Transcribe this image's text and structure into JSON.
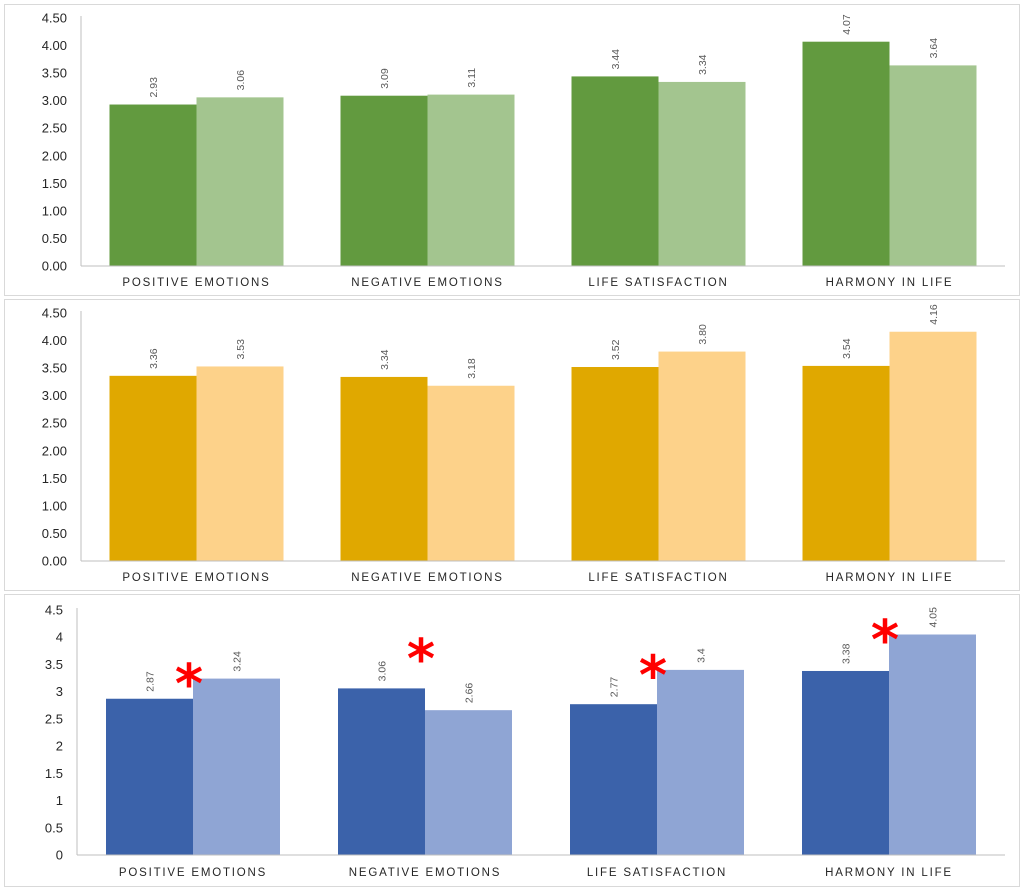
{
  "chart_data": [
    {
      "type": "bar",
      "categories": [
        "POSITIVE EMOTIONS",
        "NEGATIVE EMOTIONS",
        "LIFE SATISFACTION",
        "HARMONY IN LIFE"
      ],
      "series": [
        {
          "values": [
            2.93,
            3.09,
            3.44,
            4.07
          ],
          "labels": [
            "2.93",
            "3.09",
            "3.44",
            "4.07"
          ]
        },
        {
          "values": [
            3.06,
            3.11,
            3.34,
            3.64
          ],
          "labels": [
            "3.06",
            "3.11",
            "3.34",
            "3.64"
          ]
        }
      ],
      "colors": [
        "#629a3f",
        "#a3c58f"
      ],
      "ylim": [
        0,
        4.5
      ],
      "y_ticks": [
        "0.00",
        "0.50",
        "1.00",
        "1.50",
        "2.00",
        "2.50",
        "3.00",
        "3.50",
        "4.00",
        "4.50"
      ],
      "grid": false,
      "significance_marks": [],
      "star_symbol": "*"
    },
    {
      "type": "bar",
      "categories": [
        "POSITIVE EMOTIONS",
        "NEGATIVE EMOTIONS",
        "LIFE SATISFACTION",
        "HARMONY IN LIFE"
      ],
      "series": [
        {
          "values": [
            3.36,
            3.34,
            3.52,
            3.54
          ],
          "labels": [
            "3.36",
            "3.34",
            "3.52",
            "3.54"
          ]
        },
        {
          "values": [
            3.53,
            3.18,
            3.8,
            4.16
          ],
          "labels": [
            "3.53",
            "3.18",
            "3.80",
            "4.16"
          ]
        }
      ],
      "colors": [
        "#e0a800",
        "#fdd28a"
      ],
      "ylim": [
        0,
        4.5
      ],
      "y_ticks": [
        "0.00",
        "0.50",
        "1.00",
        "1.50",
        "2.00",
        "2.50",
        "3.00",
        "3.50",
        "4.00",
        "4.50"
      ],
      "grid": false,
      "significance_marks": [],
      "star_symbol": "*"
    },
    {
      "type": "bar",
      "categories": [
        "POSITIVE EMOTIONS",
        "NEGATIVE EMOTIONS",
        "LIFE SATISFACTION",
        "HARMONY IN LIFE"
      ],
      "series": [
        {
          "values": [
            2.87,
            3.06,
            2.77,
            3.38
          ],
          "labels": [
            "2.87",
            "3.06",
            "2.77",
            "3.38"
          ]
        },
        {
          "values": [
            3.24,
            2.66,
            3.4,
            4.05
          ],
          "labels": [
            "3.24",
            "2.66",
            "3.4",
            "4.05"
          ]
        }
      ],
      "colors": [
        "#3b62aa",
        "#8fa5d4"
      ],
      "ylim": [
        0,
        4.5
      ],
      "y_ticks": [
        "0",
        "0.5",
        "1",
        "1.5",
        "2",
        "2.5",
        "3",
        "3.5",
        "4",
        "4.5"
      ],
      "grid": false,
      "significance_marks": [
        0,
        1,
        2,
        3
      ],
      "star_symbol": "*"
    }
  ]
}
